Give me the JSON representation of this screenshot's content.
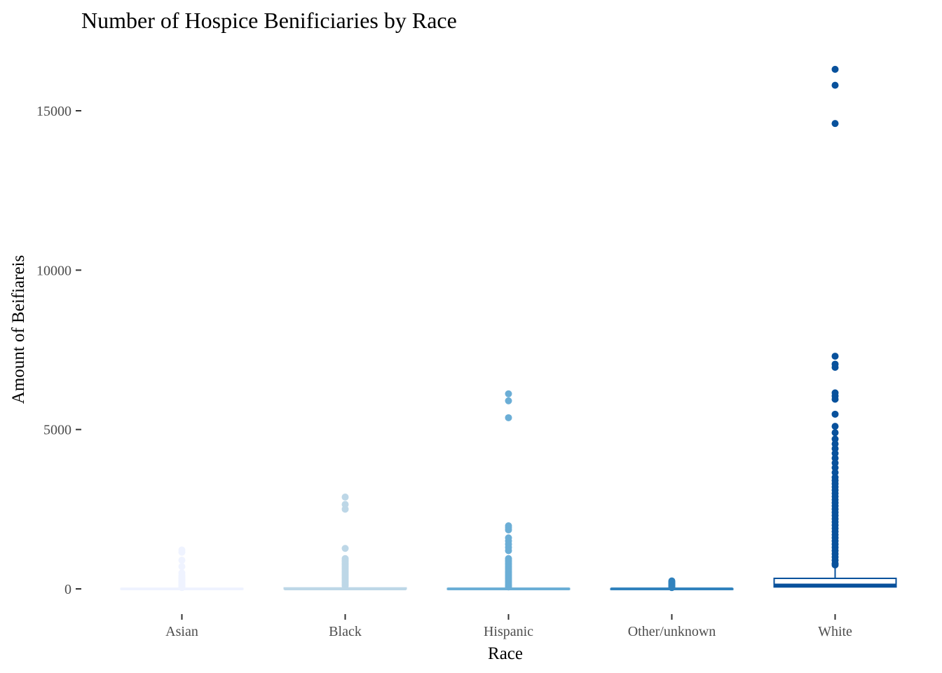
{
  "chart_data": {
    "type": "boxplot",
    "title": "Number of Hospice Benificiaries by Race",
    "xlabel": "Race",
    "ylabel": "Amount of Beifiareis",
    "categories": [
      "Asian",
      "Black",
      "Hispanic",
      "Other/unknown",
      "White"
    ],
    "ylim": [
      -700,
      16900
    ],
    "yticks": [
      0,
      5000,
      10000,
      15000
    ],
    "grid": false,
    "legend": "none",
    "series": [
      {
        "category": "Asian",
        "color": "#eff3ff",
        "min": 0,
        "q1": 0,
        "median": 0,
        "q3": 10,
        "whisker_high": 25,
        "outliers": [
          1220,
          1150,
          900,
          700,
          500,
          420,
          380,
          330,
          290,
          250,
          210,
          180,
          150,
          120,
          90,
          60,
          40
        ]
      },
      {
        "category": "Black",
        "color": "#bdd7e7",
        "min": 0,
        "q1": 0,
        "median": 0,
        "q3": 30,
        "whisker_high": 70,
        "outliers": [
          2880,
          2650,
          2500,
          1270,
          950,
          900,
          850,
          800,
          750,
          700,
          650,
          600,
          550,
          500,
          450,
          400,
          350,
          300,
          250,
          200,
          150,
          100
        ]
      },
      {
        "category": "Hispanic",
        "color": "#6baed6",
        "min": 0,
        "q1": 0,
        "median": 0,
        "q3": 10,
        "whisker_high": 25,
        "outliers": [
          6120,
          5900,
          5370,
          1980,
          1920,
          1850,
          1600,
          1500,
          1400,
          1300,
          1200,
          950,
          900,
          850,
          800,
          750,
          700,
          650,
          600,
          550,
          500,
          450,
          400,
          350,
          300,
          250,
          200,
          150,
          100,
          60
        ]
      },
      {
        "category": "Other/unknown",
        "color": "#3182bd",
        "min": 0,
        "q1": 0,
        "median": 0,
        "q3": 5,
        "whisker_high": 15,
        "outliers": [
          250,
          220,
          190,
          160,
          130,
          100,
          70,
          40
        ]
      },
      {
        "category": "White",
        "color": "#08519c",
        "min": 0,
        "q1": 60,
        "median": 120,
        "q3": 330,
        "whisker_high": 700,
        "outliers": [
          16300,
          15800,
          14600,
          7300,
          7050,
          6950,
          6150,
          6050,
          5950,
          5480,
          5100,
          4900,
          4700,
          4550,
          4400,
          4250,
          4100,
          3950,
          3800,
          3650,
          3500,
          3400,
          3300,
          3200,
          3100,
          3000,
          2900,
          2800,
          2700,
          2600,
          2500,
          2400,
          2300,
          2200,
          2100,
          2000,
          1900,
          1800,
          1700,
          1600,
          1500,
          1400,
          1300,
          1200,
          1100,
          1000,
          900,
          800,
          750
        ]
      }
    ]
  }
}
